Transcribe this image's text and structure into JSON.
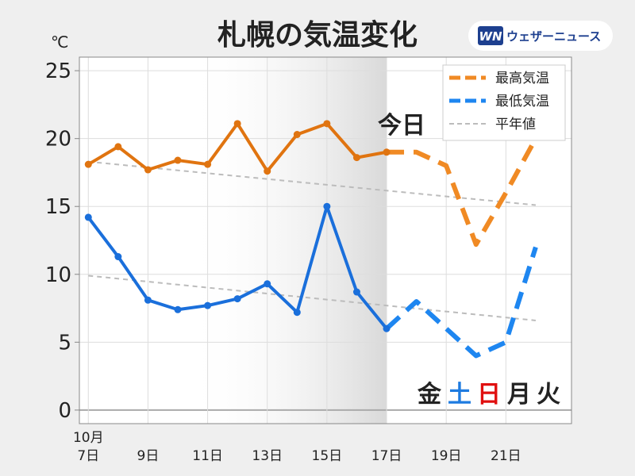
{
  "title": "札幌の気温変化",
  "unit": "℃",
  "brand": {
    "mark": "WN",
    "name": "ウェザーニュース"
  },
  "today_label": "今日",
  "weekdays": [
    {
      "label": "金",
      "color": "#222222"
    },
    {
      "label": "土",
      "color": "#1e7be0"
    },
    {
      "label": "日",
      "color": "#e01010"
    },
    {
      "label": "月",
      "color": "#222222"
    },
    {
      "label": "火",
      "color": "#222222"
    }
  ],
  "chart_data": {
    "type": "line",
    "x_unit": "day of October",
    "x_range": [
      6.7,
      23.2
    ],
    "ylim": [
      -1,
      26
    ],
    "yticks": [
      0,
      5,
      10,
      15,
      20,
      25
    ],
    "xticks": [
      {
        "x": 7,
        "line1": "10月",
        "line2": "7日"
      },
      {
        "x": 9,
        "line2": "9日"
      },
      {
        "x": 11,
        "line2": "11日"
      },
      {
        "x": 13,
        "line2": "13日"
      },
      {
        "x": 15,
        "line2": "15日"
      },
      {
        "x": 17,
        "line2": "17日"
      },
      {
        "x": 19,
        "line2": "19日"
      },
      {
        "x": 21,
        "line2": "21日"
      }
    ],
    "today": 17,
    "shade_range": [
      10.3,
      17
    ],
    "grid": true,
    "legend_position": "top-right",
    "series": [
      {
        "name": "最高気温",
        "color": "#e07410",
        "forecast_color": "#f08a24",
        "observed": [
          [
            7,
            18.1
          ],
          [
            8,
            19.4
          ],
          [
            9,
            17.7
          ],
          [
            10,
            18.4
          ],
          [
            11,
            18.1
          ],
          [
            12,
            21.1
          ],
          [
            13,
            17.6
          ],
          [
            14,
            20.3
          ],
          [
            15,
            21.1
          ],
          [
            16,
            18.6
          ],
          [
            17,
            19.0
          ]
        ],
        "forecast": [
          [
            17,
            19.0
          ],
          [
            18,
            19.0
          ],
          [
            19,
            18.0
          ],
          [
            20,
            12.2
          ],
          [
            21,
            16.0
          ],
          [
            22,
            20.0
          ]
        ]
      },
      {
        "name": "最低気温",
        "color": "#1a6fdb",
        "forecast_color": "#1e86f0",
        "observed": [
          [
            7,
            14.2
          ],
          [
            8,
            11.3
          ],
          [
            9,
            8.1
          ],
          [
            10,
            7.4
          ],
          [
            11,
            7.7
          ],
          [
            12,
            8.2
          ],
          [
            13,
            9.3
          ],
          [
            14,
            7.2
          ],
          [
            15,
            15.0
          ],
          [
            16,
            8.7
          ],
          [
            17,
            6.0
          ]
        ],
        "forecast": [
          [
            17,
            6.0
          ],
          [
            18,
            8.0
          ],
          [
            19,
            6.0
          ],
          [
            20,
            4.0
          ],
          [
            21,
            5.0
          ],
          [
            22,
            12.0
          ]
        ]
      },
      {
        "name": "平年値",
        "color": "#bcbcbc",
        "lines": [
          [
            [
              7,
              18.3
            ],
            [
              22,
              15.1
            ]
          ],
          [
            [
              7,
              9.9
            ],
            [
              22,
              6.6
            ]
          ]
        ]
      }
    ]
  }
}
